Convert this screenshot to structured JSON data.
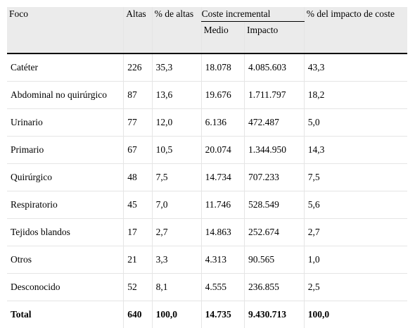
{
  "table": {
    "group_header": "Coste incremental",
    "headers": {
      "foco": "Foco",
      "altas": "Altas",
      "pct_altas": "% de altas",
      "medio": "Medio",
      "impacto": "Impacto",
      "pct_impacto": "% del impacto de coste"
    },
    "rows": [
      [
        "Catéter",
        "226",
        "35,3",
        "18.078",
        "4.085.603",
        "43,3"
      ],
      [
        "Abdominal no quirúrgico",
        "87",
        "13,6",
        "19.676",
        "1.711.797",
        "18,2"
      ],
      [
        "Urinario",
        "77",
        "12,0",
        "6.136",
        "472.487",
        "5,0"
      ],
      [
        "Primario",
        "67",
        "10,5",
        "20.074",
        "1.344.950",
        "14,3"
      ],
      [
        "Quirúrgico",
        "48",
        "7,5",
        "14.734",
        "707.233",
        "7,5"
      ],
      [
        "Respiratorio",
        "45",
        "7,0",
        "11.746",
        "528.549",
        "5,6"
      ],
      [
        "Tejidos blandos",
        "17",
        "2,7",
        "14.863",
        "252.674",
        "2,7"
      ],
      [
        "Otros",
        "21",
        "3,3",
        "4.313",
        "90.565",
        "1,0"
      ],
      [
        "Desconocido",
        "52",
        "8,1",
        "4.555",
        "236.855",
        "2,5"
      ]
    ],
    "total": [
      "Total",
      "640",
      "100,0",
      "14.735",
      "9.430.713",
      "100,0"
    ]
  }
}
